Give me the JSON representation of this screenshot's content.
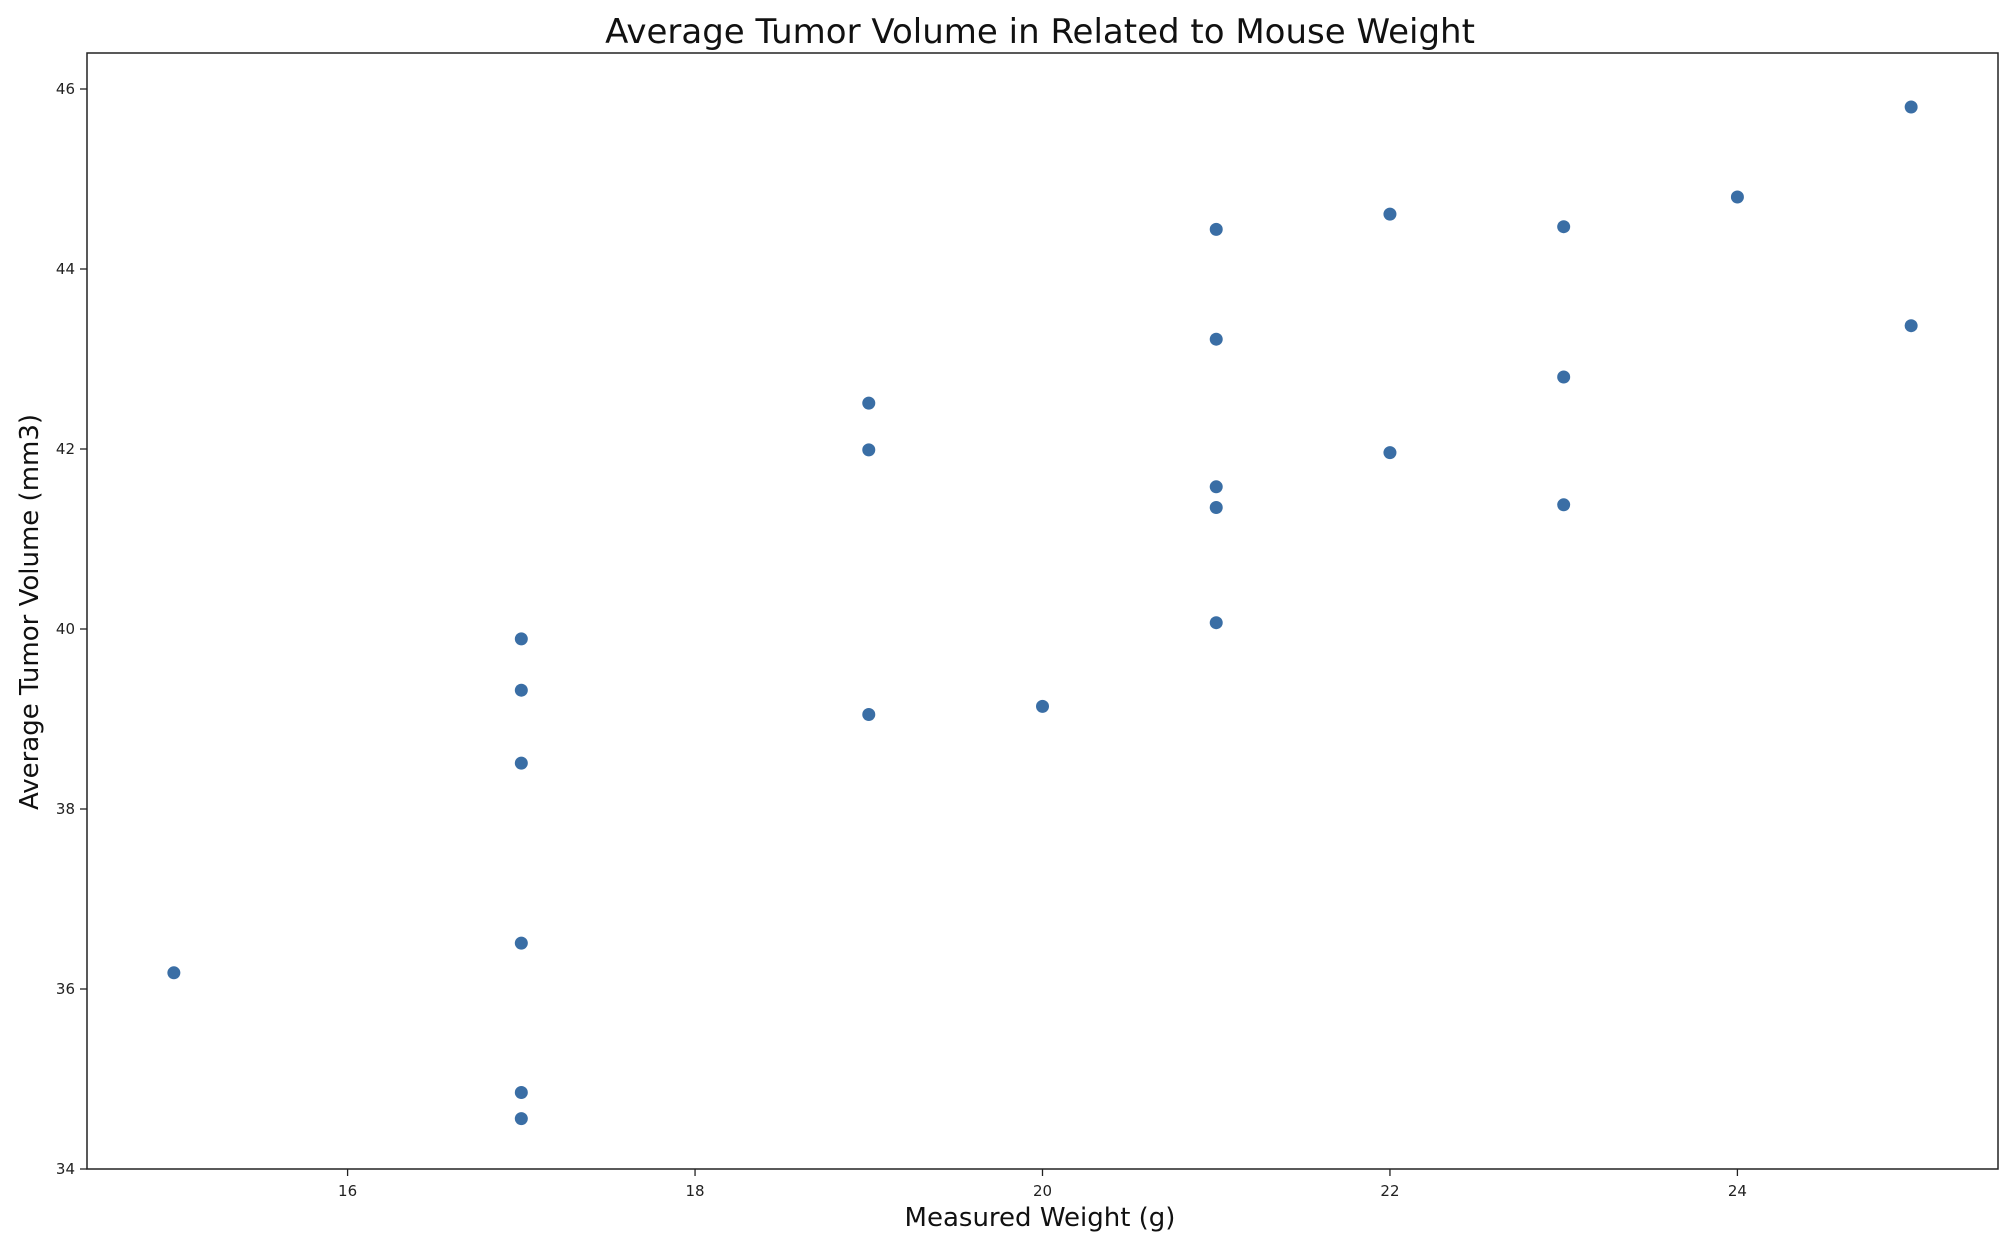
{
  "chart_data": {
    "type": "scatter",
    "title": "Average Tumor Volume in Related to Mouse Weight",
    "xlabel": "Measured Weight (g)",
    "ylabel": "Average Tumor Volume (mm3)",
    "xlim": [
      14.5,
      25.5
    ],
    "ylim": [
      34,
      46.4
    ],
    "xticks": [
      "16",
      "18",
      "20",
      "22",
      "24"
    ],
    "yticks": [
      "34",
      "36",
      "38",
      "40",
      "42",
      "44",
      "46"
    ],
    "grid": false,
    "point_color": "#3a6ea5",
    "series": [
      {
        "points": [
          {
            "x": 15,
            "y": 36.18
          },
          {
            "x": 17,
            "y": 39.89
          },
          {
            "x": 17,
            "y": 39.32
          },
          {
            "x": 17,
            "y": 38.51
          },
          {
            "x": 17,
            "y": 36.51
          },
          {
            "x": 17,
            "y": 34.85
          },
          {
            "x": 17,
            "y": 34.56
          },
          {
            "x": 19,
            "y": 42.51
          },
          {
            "x": 19,
            "y": 41.99
          },
          {
            "x": 19,
            "y": 39.05
          },
          {
            "x": 20,
            "y": 39.14
          },
          {
            "x": 21,
            "y": 44.44
          },
          {
            "x": 21,
            "y": 43.22
          },
          {
            "x": 21,
            "y": 41.58
          },
          {
            "x": 21,
            "y": 41.35
          },
          {
            "x": 21,
            "y": 40.07
          },
          {
            "x": 22,
            "y": 44.61
          },
          {
            "x": 22,
            "y": 41.96
          },
          {
            "x": 23,
            "y": 44.47
          },
          {
            "x": 23,
            "y": 42.8
          },
          {
            "x": 23,
            "y": 41.38
          },
          {
            "x": 24,
            "y": 44.8
          },
          {
            "x": 25,
            "y": 45.8
          },
          {
            "x": 25,
            "y": 43.37
          }
        ]
      }
    ]
  }
}
